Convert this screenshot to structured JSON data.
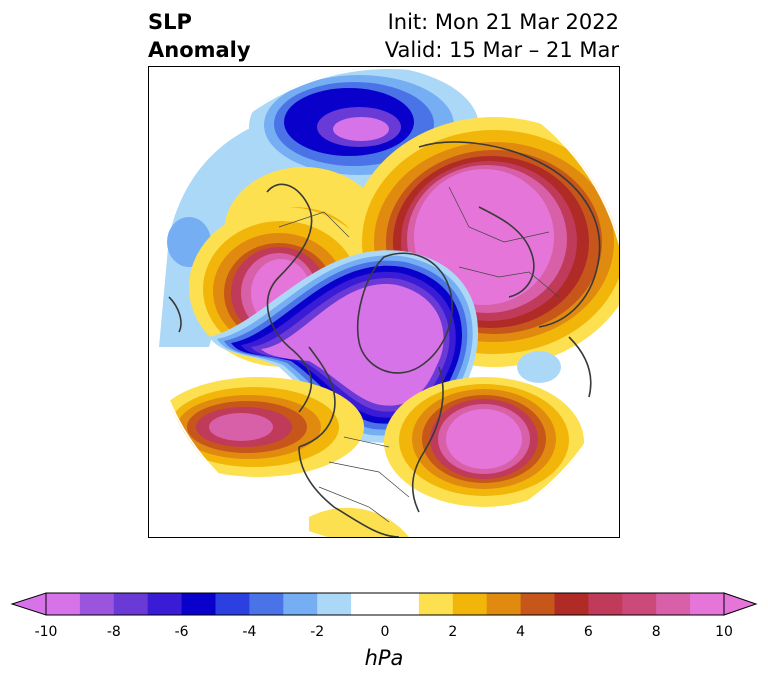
{
  "title": {
    "left_line1": "SLP",
    "left_line2": "Anomaly",
    "right_line1": "Init: Mon 21 Mar 2022",
    "right_line2": "Valid: 15 Mar – 21 Mar"
  },
  "colorbar": {
    "unit": "hPa",
    "ticks": [
      "-10",
      "-8",
      "-6",
      "-4",
      "-2",
      "0",
      "2",
      "4",
      "6",
      "8",
      "10"
    ],
    "colors": [
      "#d673e8",
      "#9b54de",
      "#6a3ad6",
      "#3a1bd6",
      "#0a00cc",
      "#2c3fe0",
      "#4b73e8",
      "#75aef2",
      "#acd8f8",
      "#ffffff",
      "#ffffff",
      "#fde050",
      "#f2b50a",
      "#e08a10",
      "#c6561a",
      "#b02a26",
      "#c03a5a",
      "#cc4a7a",
      "#d860a8",
      "#e575d8"
    ],
    "extend": "both"
  },
  "map": {
    "projection": "north-polar-stereographic",
    "field": "sea-level-pressure-anomaly"
  }
}
